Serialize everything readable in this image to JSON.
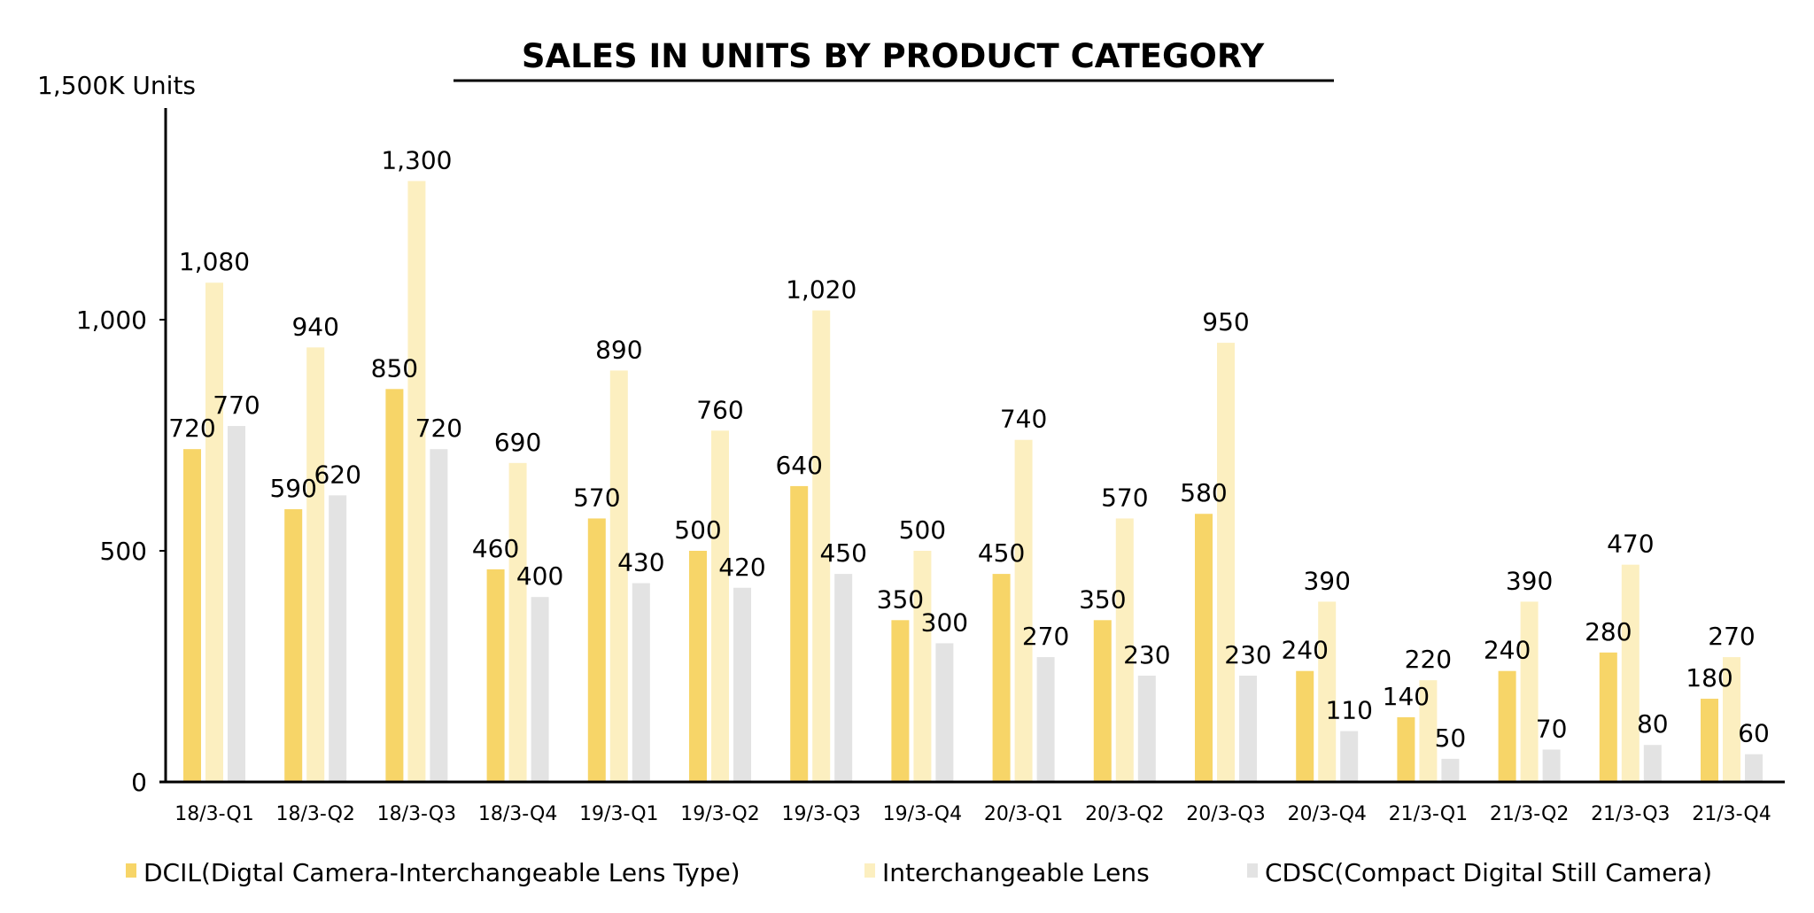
{
  "chart_data": {
    "type": "bar",
    "title": "SALES IN UNITS BY PRODUCT CATEGORY",
    "ylabel": "1,500K Units",
    "xlabel": "",
    "ylim": [
      0,
      1500
    ],
    "yticks": [
      {
        "value": 0,
        "label": "0"
      },
      {
        "value": 500,
        "label": "500"
      },
      {
        "value": 1000,
        "label": "1,000"
      }
    ],
    "grid": false,
    "legend_position": "bottom",
    "categories": [
      "18/3-Q1",
      "18/3-Q2",
      "18/3-Q3",
      "18/3-Q4",
      "19/3-Q1",
      "19/3-Q2",
      "19/3-Q3",
      "19/3-Q4",
      "20/3-Q1",
      "20/3-Q2",
      "20/3-Q3",
      "20/3-Q4",
      "21/3-Q1",
      "21/3-Q2",
      "21/3-Q3",
      "21/3-Q4"
    ],
    "series": [
      {
        "name": "DCIL(Digtal Camera-Interchangeable Lens Type)",
        "color": "#F7D568",
        "values": [
          720,
          590,
          850,
          460,
          570,
          500,
          640,
          350,
          450,
          350,
          580,
          240,
          140,
          240,
          280,
          180
        ]
      },
      {
        "name": "Interchangeable Lens",
        "color": "#FCEFC0",
        "values": [
          1080,
          940,
          1300,
          690,
          890,
          760,
          1020,
          500,
          740,
          570,
          950,
          390,
          220,
          390,
          470,
          270
        ]
      },
      {
        "name": "CDSC(Compact Digital Still Camera)",
        "color": "#E3E3E3",
        "values": [
          770,
          620,
          720,
          400,
          430,
          420,
          450,
          300,
          270,
          230,
          230,
          110,
          50,
          70,
          80,
          60
        ]
      }
    ]
  }
}
